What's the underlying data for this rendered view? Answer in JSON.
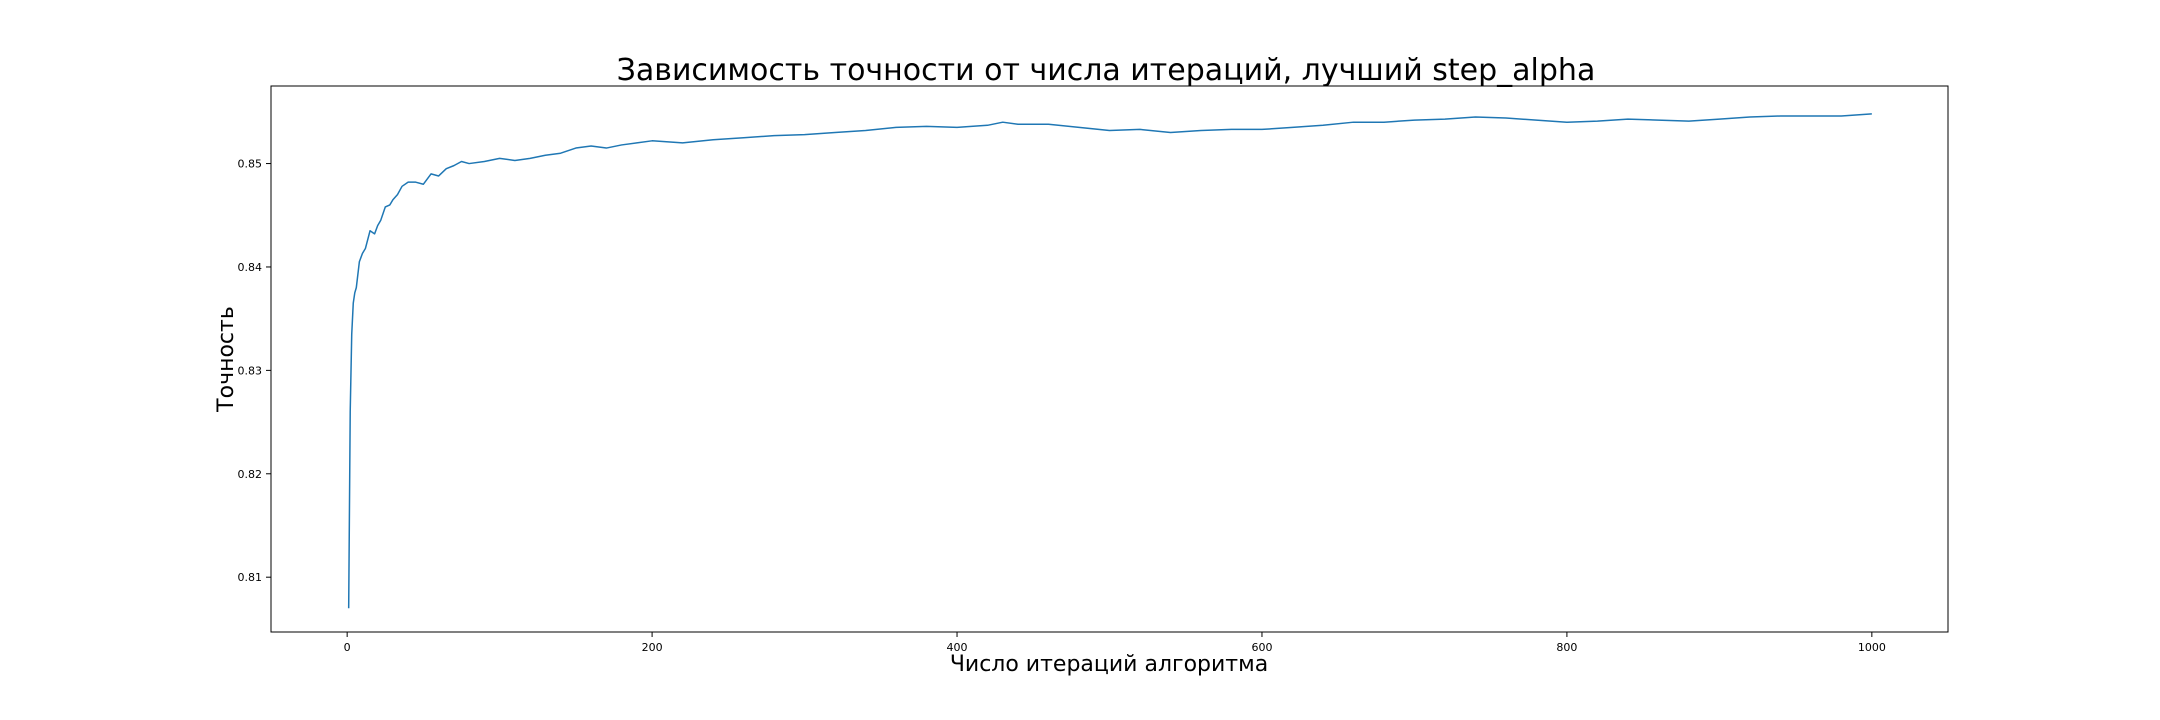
{
  "chart_data": {
    "type": "line",
    "title": "Зависимость точности от числа итераций, лучший step_alpha",
    "xlabel": "Число итераций алгоритма",
    "ylabel": "Точность",
    "xlim": [
      -49.95,
      1049.95
    ],
    "ylim": [
      0.8047,
      0.8575
    ],
    "xticks": [
      0,
      200,
      400,
      600,
      800,
      1000
    ],
    "yticks": [
      0.81,
      0.82,
      0.83,
      0.84,
      0.85
    ],
    "xtick_labels": [
      "0",
      "200",
      "400",
      "600",
      "800",
      "1000"
    ],
    "ytick_labels": [
      "0.81",
      "0.82",
      "0.83",
      "0.84",
      "0.85"
    ],
    "grid": false,
    "line_color": "#1f77b4",
    "series": [
      {
        "x": [
          1,
          2,
          3,
          4,
          5,
          6,
          8,
          10,
          12,
          15,
          18,
          20,
          22,
          25,
          28,
          30,
          33,
          36,
          40,
          45,
          50,
          55,
          60,
          65,
          70,
          75,
          80,
          90,
          100,
          110,
          120,
          130,
          140,
          150,
          160,
          170,
          180,
          190,
          200,
          220,
          240,
          260,
          280,
          300,
          320,
          340,
          360,
          380,
          400,
          420,
          430,
          440,
          460,
          480,
          500,
          520,
          540,
          560,
          580,
          600,
          620,
          640,
          660,
          680,
          700,
          720,
          740,
          760,
          780,
          800,
          820,
          840,
          860,
          880,
          900,
          920,
          940,
          960,
          980,
          1000
        ],
        "y": [
          0.807,
          0.826,
          0.8335,
          0.8365,
          0.8375,
          0.838,
          0.8405,
          0.8413,
          0.8418,
          0.8435,
          0.8432,
          0.844,
          0.8445,
          0.8458,
          0.846,
          0.8465,
          0.847,
          0.8478,
          0.8482,
          0.8482,
          0.848,
          0.849,
          0.8488,
          0.8495,
          0.8498,
          0.8502,
          0.85,
          0.8502,
          0.8505,
          0.8503,
          0.8505,
          0.8508,
          0.851,
          0.8515,
          0.8517,
          0.8515,
          0.8518,
          0.852,
          0.8522,
          0.852,
          0.8523,
          0.8525,
          0.8527,
          0.8528,
          0.853,
          0.8532,
          0.8535,
          0.8536,
          0.8535,
          0.8537,
          0.854,
          0.8538,
          0.8538,
          0.8535,
          0.8532,
          0.8533,
          0.853,
          0.8532,
          0.8533,
          0.8533,
          0.8535,
          0.8537,
          0.854,
          0.854,
          0.8542,
          0.8543,
          0.8545,
          0.8544,
          0.8542,
          0.854,
          0.8541,
          0.8543,
          0.8542,
          0.8541,
          0.8543,
          0.8545,
          0.8546,
          0.8546,
          0.8546,
          0.8548
        ]
      }
    ]
  }
}
